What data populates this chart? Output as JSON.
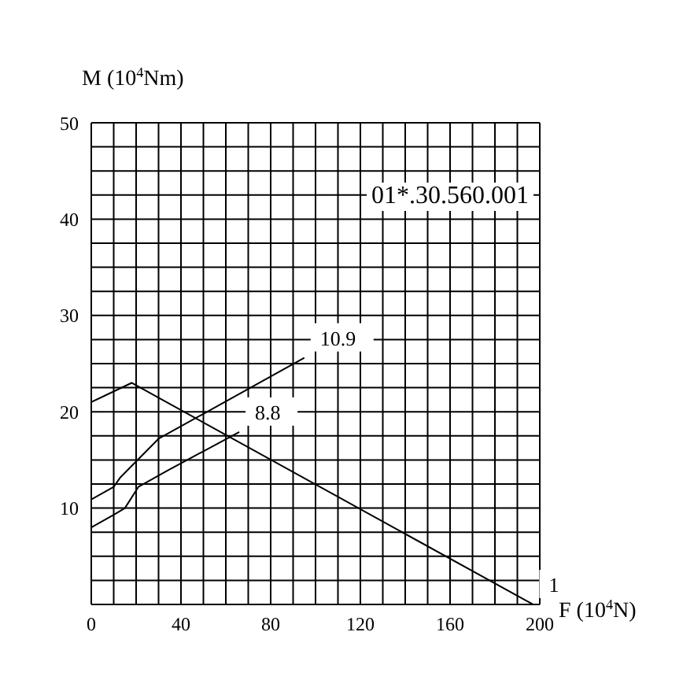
{
  "chart_data": {
    "type": "line",
    "xlabel": "F (10$^{4}$N)",
    "ylabel": "M (10$^{4}$Nm)",
    "annotations": [
      "01*.30.560.001"
    ],
    "xlim": [
      0,
      200
    ],
    "ylim": [
      0,
      50
    ],
    "xticks": [
      0,
      {
        "value": 10,
        "label": null
      },
      {
        "value": 20,
        "label": null
      },
      {
        "value": 30,
        "label": null
      },
      40,
      {
        "value": 50,
        "label": null
      },
      {
        "value": 60,
        "label": null
      },
      {
        "value": 70,
        "label": null
      },
      80,
      {
        "value": 90,
        "label": null
      },
      {
        "value": 100,
        "label": null
      },
      {
        "value": 110,
        "label": null
      },
      120,
      {
        "value": 130,
        "label": null
      },
      {
        "value": 140,
        "label": null
      },
      {
        "value": 150,
        "label": null
      },
      160,
      {
        "value": 170,
        "label": null
      },
      {
        "value": 180,
        "label": null
      },
      {
        "value": 190,
        "label": null
      },
      200
    ],
    "yticks": [
      {
        "value": 0,
        "label": null
      },
      {
        "value": 2.5,
        "label": null
      },
      {
        "value": 5,
        "label": null
      },
      {
        "value": 7.5,
        "label": null
      },
      10,
      {
        "value": 12.5,
        "label": null
      },
      {
        "value": 15,
        "label": null
      },
      {
        "value": 17.5,
        "label": null
      },
      20,
      {
        "value": 22.5,
        "label": null
      },
      {
        "value": 25,
        "label": null
      },
      {
        "value": 27.5,
        "label": null
      },
      30,
      {
        "value": 32.5,
        "label": null
      },
      {
        "value": 35,
        "label": null
      },
      {
        "value": 37.5,
        "label": null
      },
      40,
      {
        "value": 42.5,
        "label": null
      },
      {
        "value": 45,
        "label": null
      },
      {
        "value": 47.5,
        "label": null
      },
      50
    ],
    "grid": true,
    "marker": "none",
    "line_style": "solid",
    "series": [
      {
        "name": "10.9",
        "color": "#000000",
        "x": [
          0,
          10,
          13,
          30,
          95
        ],
        "values": [
          10.9,
          12.2,
          13.2,
          17.2,
          25.6
        ]
      },
      {
        "name": "8.8",
        "color": "#000000",
        "x": [
          0,
          10,
          15,
          21,
          34,
          66
        ],
        "values": [
          8,
          9.3,
          10,
          12.2,
          13.9,
          17.9
        ]
      },
      {
        "name": "1",
        "color": "#000000",
        "x": [
          0,
          18,
          197
        ],
        "values": [
          21,
          23,
          0
        ]
      }
    ]
  }
}
